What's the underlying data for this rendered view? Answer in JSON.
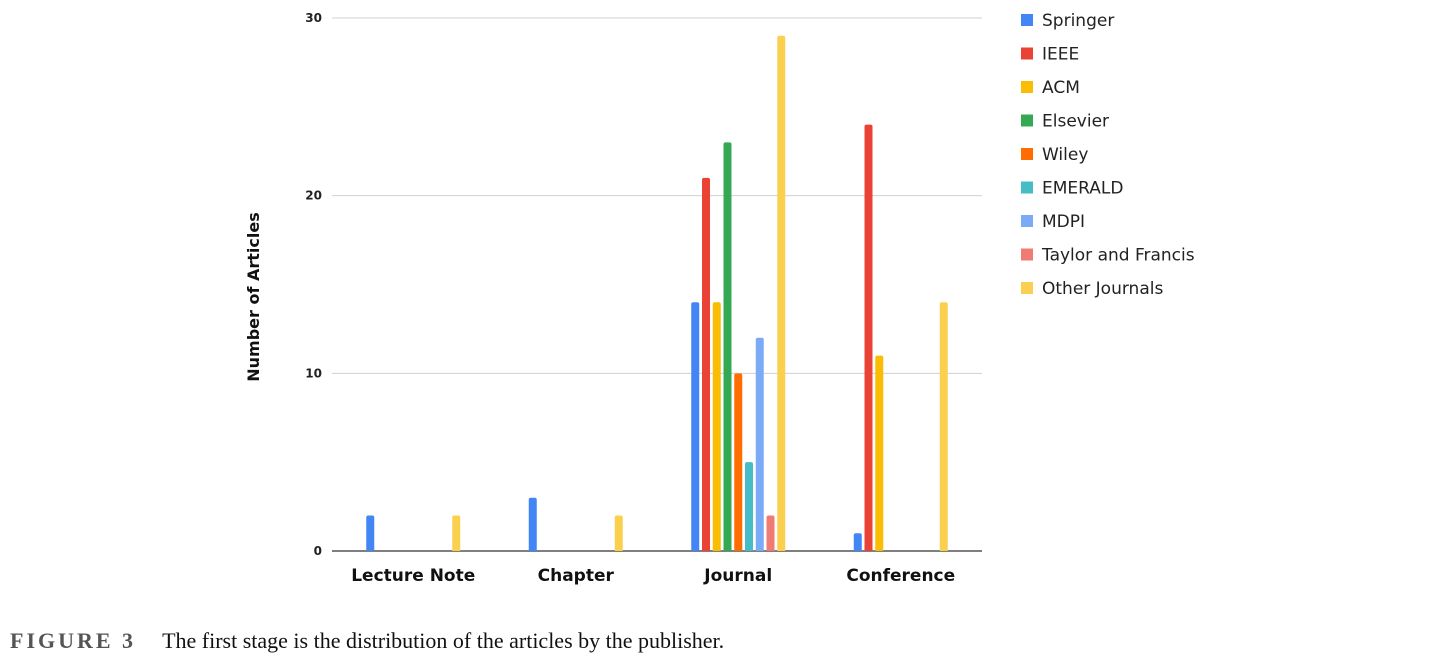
{
  "chart_data": {
    "type": "bar",
    "ylabel": "Number of Articles",
    "ylim": [
      0,
      30
    ],
    "yticks": [
      0,
      10,
      20,
      30
    ],
    "categories": [
      "Lecture Note",
      "Chapter",
      "Journal",
      "Conference"
    ],
    "legend_position": "right",
    "grid": true,
    "series": [
      {
        "name": "Springer",
        "color": "#4285f4",
        "values": [
          2,
          3,
          14,
          1
        ]
      },
      {
        "name": "IEEE",
        "color": "#ea4335",
        "values": [
          0,
          0,
          21,
          24
        ]
      },
      {
        "name": "ACM",
        "color": "#fbbc04",
        "values": [
          0,
          0,
          14,
          11
        ]
      },
      {
        "name": "Elsevier",
        "color": "#34a853",
        "values": [
          0,
          0,
          23,
          0
        ]
      },
      {
        "name": "Wiley",
        "color": "#ff6d01",
        "values": [
          0,
          0,
          10,
          0
        ]
      },
      {
        "name": "EMERALD",
        "color": "#46bdc6",
        "values": [
          0,
          0,
          5,
          0
        ]
      },
      {
        "name": "MDPI",
        "color": "#7baaf7",
        "values": [
          0,
          0,
          12,
          0
        ]
      },
      {
        "name": "Taylor and Francis",
        "color": "#f07b72",
        "values": [
          0,
          0,
          2,
          0
        ]
      },
      {
        "name": "Other Journals",
        "color": "#fcd04f",
        "values": [
          2,
          2,
          29,
          14
        ]
      }
    ]
  },
  "caption": {
    "label": "FIGURE 3",
    "text": "The first stage is the distribution of the articles by the publisher."
  }
}
